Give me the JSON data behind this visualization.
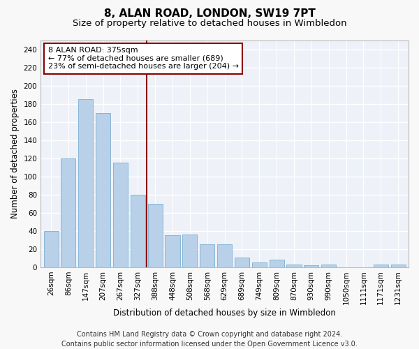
{
  "title": "8, ALAN ROAD, LONDON, SW19 7PT",
  "subtitle": "Size of property relative to detached houses in Wimbledon",
  "xlabel": "Distribution of detached houses by size in Wimbledon",
  "ylabel": "Number of detached properties",
  "categories": [
    "26sqm",
    "86sqm",
    "147sqm",
    "207sqm",
    "267sqm",
    "327sqm",
    "388sqm",
    "448sqm",
    "508sqm",
    "568sqm",
    "629sqm",
    "689sqm",
    "749sqm",
    "809sqm",
    "870sqm",
    "930sqm",
    "990sqm",
    "1050sqm",
    "1111sqm",
    "1171sqm",
    "1231sqm"
  ],
  "values": [
    40,
    120,
    185,
    170,
    115,
    80,
    70,
    35,
    36,
    25,
    25,
    11,
    5,
    8,
    3,
    2,
    3,
    0,
    0,
    3,
    3
  ],
  "bar_color": "#b8d0e8",
  "bar_edgecolor": "#7aafd4",
  "vline_color": "#8b0000",
  "annotation_text_line1": "8 ALAN ROAD: 375sqm",
  "annotation_text_line2": "← 77% of detached houses are smaller (689)",
  "annotation_text_line3": "23% of semi-detached houses are larger (204) →",
  "annotation_box_color": "#ffffff",
  "annotation_box_edgecolor": "#8b0000",
  "ylim": [
    0,
    250
  ],
  "yticks": [
    0,
    20,
    40,
    60,
    80,
    100,
    120,
    140,
    160,
    180,
    200,
    220,
    240
  ],
  "footer_line1": "Contains HM Land Registry data © Crown copyright and database right 2024.",
  "footer_line2": "Contains public sector information licensed under the Open Government Licence v3.0.",
  "background_color": "#f8f8f8",
  "plot_background_color": "#eef2f8",
  "grid_color": "#ffffff",
  "title_fontsize": 11,
  "subtitle_fontsize": 9.5,
  "axis_label_fontsize": 8.5,
  "tick_fontsize": 7.5,
  "footer_fontsize": 7
}
